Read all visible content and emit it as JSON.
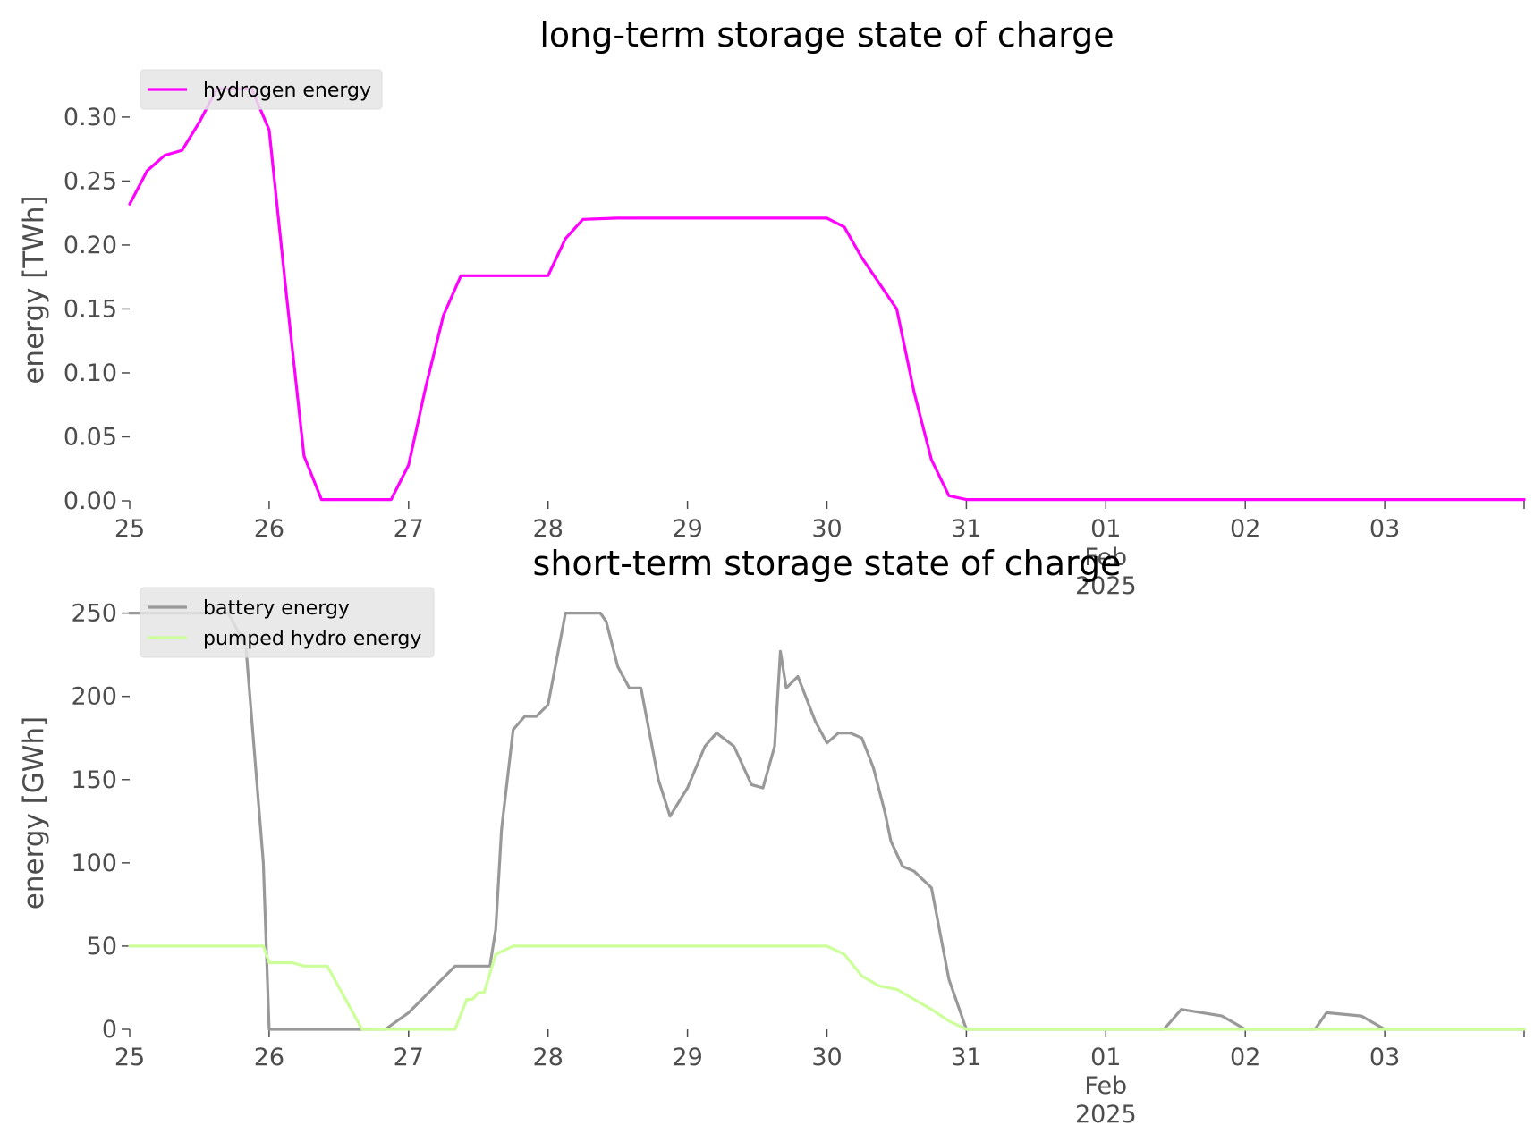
{
  "chart_data": [
    {
      "type": "line",
      "title": "long-term storage state of charge",
      "ylabel": "energy [TWh]",
      "xlabel": "",
      "xlim": [
        "2025-01-25",
        "2025-02-04"
      ],
      "ylim": [
        0,
        0.33
      ],
      "yticks": [
        "0.00",
        "0.05",
        "0.10",
        "0.15",
        "0.20",
        "0.25",
        "0.30"
      ],
      "ytick_values": [
        0,
        0.05,
        0.1,
        0.15,
        0.2,
        0.25,
        0.3
      ],
      "xticks": [
        {
          "label": "25",
          "date": "2025-01-25"
        },
        {
          "label": "26",
          "date": "2025-01-26"
        },
        {
          "label": "27",
          "date": "2025-01-27"
        },
        {
          "label": "28",
          "date": "2025-01-28"
        },
        {
          "label": "29",
          "date": "2025-01-29"
        },
        {
          "label": "30",
          "date": "2025-01-30"
        },
        {
          "label": "31",
          "date": "2025-01-31"
        },
        {
          "label": "01",
          "date": "2025-02-01",
          "sub1": "Feb",
          "sub2": "2025"
        },
        {
          "label": "02",
          "date": "2025-02-02"
        },
        {
          "label": "03",
          "date": "2025-02-03"
        }
      ],
      "grid": false,
      "legend_position": "top-left",
      "series": [
        {
          "name": "hydrogen energy",
          "color": "#ff00ff",
          "x": [
            "2025-01-25 00:00",
            "2025-01-25 03:00",
            "2025-01-25 06:00",
            "2025-01-25 09:00",
            "2025-01-25 12:00",
            "2025-01-25 15:00",
            "2025-01-25 18:00",
            "2025-01-25 21:00",
            "2025-01-26 00:00",
            "2025-01-26 03:00",
            "2025-01-26 06:00",
            "2025-01-26 09:00",
            "2025-01-26 12:00",
            "2025-01-26 15:00",
            "2025-01-26 18:00",
            "2025-01-26 21:00",
            "2025-01-27 00:00",
            "2025-01-27 03:00",
            "2025-01-27 06:00",
            "2025-01-27 09:00",
            "2025-01-27 12:00",
            "2025-01-27 18:00",
            "2025-01-28 00:00",
            "2025-01-28 03:00",
            "2025-01-28 06:00",
            "2025-01-28 12:00",
            "2025-01-29 00:00",
            "2025-01-29 12:00",
            "2025-01-30 00:00",
            "2025-01-30 03:00",
            "2025-01-30 06:00",
            "2025-01-30 09:00",
            "2025-01-30 12:00",
            "2025-01-30 15:00",
            "2025-01-30 18:00",
            "2025-01-30 21:00",
            "2025-01-31 00:00",
            "2025-02-01 00:00",
            "2025-02-02 00:00",
            "2025-02-03 00:00",
            "2025-02-04 00:00"
          ],
          "y": [
            0.232,
            0.258,
            0.27,
            0.274,
            0.296,
            0.322,
            0.322,
            0.322,
            0.29,
            0.16,
            0.035,
            0.001,
            0.001,
            0.001,
            0.001,
            0.001,
            0.028,
            0.09,
            0.145,
            0.176,
            0.176,
            0.176,
            0.176,
            0.205,
            0.22,
            0.221,
            0.221,
            0.221,
            0.221,
            0.214,
            0.19,
            0.17,
            0.15,
            0.085,
            0.032,
            0.004,
            0.001,
            0.001,
            0.001,
            0.001,
            0.001
          ]
        }
      ]
    },
    {
      "type": "line",
      "title": "short-term storage state of charge",
      "ylabel": "energy [GWh]",
      "xlabel": "",
      "xlim": [
        "2025-01-25",
        "2025-02-04"
      ],
      "ylim": [
        0,
        260
      ],
      "yticks": [
        "0",
        "50",
        "100",
        "150",
        "200",
        "250"
      ],
      "ytick_values": [
        0,
        50,
        100,
        150,
        200,
        250
      ],
      "xticks": [
        {
          "label": "25",
          "date": "2025-01-25"
        },
        {
          "label": "26",
          "date": "2025-01-26"
        },
        {
          "label": "27",
          "date": "2025-01-27"
        },
        {
          "label": "28",
          "date": "2025-01-28"
        },
        {
          "label": "29",
          "date": "2025-01-29"
        },
        {
          "label": "30",
          "date": "2025-01-30"
        },
        {
          "label": "31",
          "date": "2025-01-31"
        },
        {
          "label": "01",
          "date": "2025-02-01",
          "sub1": "Feb",
          "sub2": "2025"
        },
        {
          "label": "02",
          "date": "2025-02-02"
        },
        {
          "label": "03",
          "date": "2025-02-03"
        }
      ],
      "grid": false,
      "legend_position": "top-left",
      "series": [
        {
          "name": "battery energy",
          "color": "#999999",
          "x": [
            "2025-01-25 00:00",
            "2025-01-25 12:00",
            "2025-01-25 17:00",
            "2025-01-25 20:00",
            "2025-01-25 23:00",
            "2025-01-26 00:00",
            "2025-01-26 12:00",
            "2025-01-26 20:00",
            "2025-01-27 00:00",
            "2025-01-27 08:00",
            "2025-01-27 09:00",
            "2025-01-27 10:00",
            "2025-01-27 14:00",
            "2025-01-27 15:00",
            "2025-01-27 16:00",
            "2025-01-27 18:00",
            "2025-01-27 20:00",
            "2025-01-27 22:00",
            "2025-01-28 00:00",
            "2025-01-28 03:00",
            "2025-01-28 05:00",
            "2025-01-28 06:00",
            "2025-01-28 09:00",
            "2025-01-28 10:00",
            "2025-01-28 12:00",
            "2025-01-28 14:00",
            "2025-01-28 16:00",
            "2025-01-28 19:00",
            "2025-01-28 21:00",
            "2025-01-29 00:00",
            "2025-01-29 03:00",
            "2025-01-29 05:00",
            "2025-01-29 08:00",
            "2025-01-29 11:00",
            "2025-01-29 13:00",
            "2025-01-29 15:00",
            "2025-01-29 16:00",
            "2025-01-29 17:00",
            "2025-01-29 19:00",
            "2025-01-29 22:00",
            "2025-01-30 00:00",
            "2025-01-30 02:00",
            "2025-01-30 04:00",
            "2025-01-30 06:00",
            "2025-01-30 08:00",
            "2025-01-30 10:00",
            "2025-01-30 11:00",
            "2025-01-30 13:00",
            "2025-01-30 15:00",
            "2025-01-30 18:00",
            "2025-01-30 21:00",
            "2025-01-31 00:00",
            "2025-02-01 10:00",
            "2025-02-01 13:00",
            "2025-02-01 20:00",
            "2025-02-02 00:00",
            "2025-02-02 12:00",
            "2025-02-02 14:00",
            "2025-02-02 20:00",
            "2025-02-03 00:00",
            "2025-02-04 00:00"
          ],
          "y": [
            250,
            250,
            250,
            230,
            100,
            0,
            0,
            0,
            10,
            38,
            38,
            38,
            38,
            60,
            120,
            180,
            188,
            188,
            195,
            250,
            250,
            250,
            250,
            245,
            218,
            205,
            205,
            150,
            128,
            145,
            170,
            178,
            170,
            147,
            145,
            170,
            227,
            205,
            212,
            185,
            172,
            178,
            178,
            175,
            157,
            130,
            113,
            98,
            95,
            85,
            30,
            0,
            0,
            12,
            8,
            0,
            0,
            10,
            8,
            0,
            0
          ]
        },
        {
          "name": "pumped hydro energy",
          "color": "#ccff99",
          "x": [
            "2025-01-25 00:00",
            "2025-01-25 23:00",
            "2025-01-26 00:00",
            "2025-01-26 04:00",
            "2025-01-26 06:00",
            "2025-01-26 10:00",
            "2025-01-26 16:00",
            "2025-01-27 00:00",
            "2025-01-27 08:00",
            "2025-01-27 10:00",
            "2025-01-27 11:00",
            "2025-01-27 12:00",
            "2025-01-27 13:00",
            "2025-01-27 15:00",
            "2025-01-27 18:00",
            "2025-01-28 00:00",
            "2025-01-29 00:00",
            "2025-01-30 00:00",
            "2025-01-30 03:00",
            "2025-01-30 06:00",
            "2025-01-30 09:00",
            "2025-01-30 12:00",
            "2025-01-30 15:00",
            "2025-01-30 18:00",
            "2025-01-30 21:00",
            "2025-01-31 00:00",
            "2025-02-01 00:00",
            "2025-02-02 00:00",
            "2025-02-03 00:00",
            "2025-02-04 00:00"
          ],
          "y": [
            50,
            50,
            40,
            40,
            38,
            38,
            0,
            0,
            0,
            18,
            18,
            22,
            22,
            45,
            50,
            50,
            50,
            50,
            45,
            32,
            26,
            24,
            18,
            12,
            5,
            0,
            0,
            0,
            0,
            0
          ]
        }
      ]
    }
  ]
}
